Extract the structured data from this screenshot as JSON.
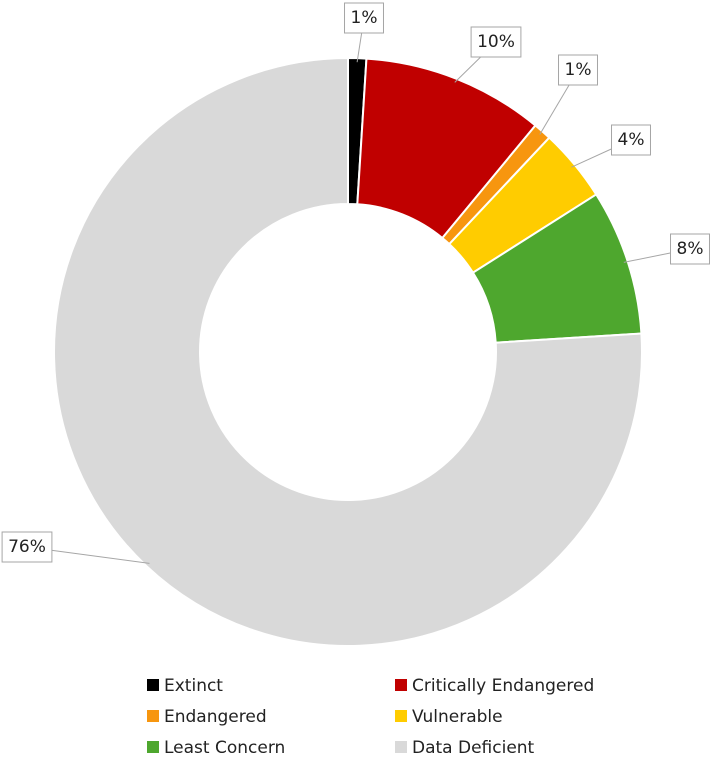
{
  "chart_data": {
    "type": "donut",
    "categories": [
      "Extinct",
      "Critically Endangered",
      "Endangered",
      "Vulnerable",
      "Least Concern",
      "Data Deficient"
    ],
    "values": [
      1,
      10,
      1,
      4,
      8,
      76
    ],
    "value_labels": [
      "1%",
      "10%",
      "1%",
      "4%",
      "8%",
      "76%"
    ],
    "colors": [
      "#000000",
      "#c00000",
      "#f7960f",
      "#ffcc00",
      "#4ea72e",
      "#d9d9d9"
    ],
    "legend": "bottom"
  }
}
